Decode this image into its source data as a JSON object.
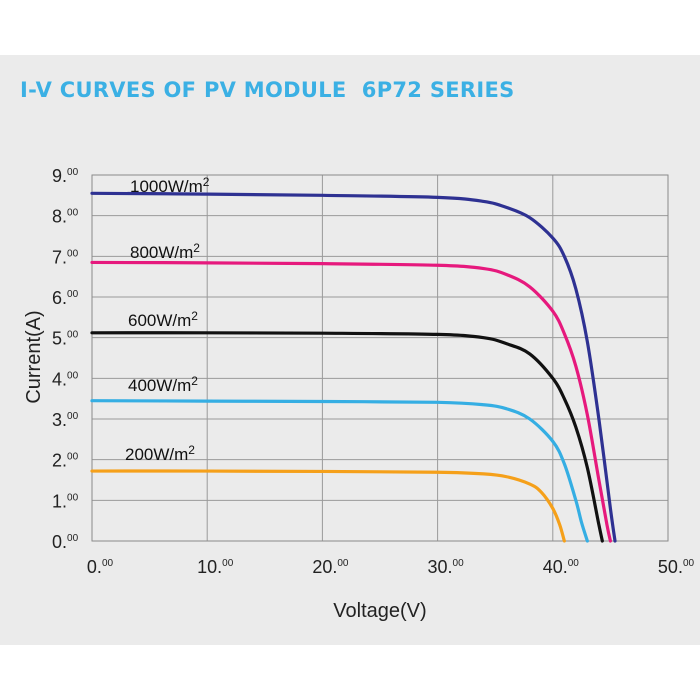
{
  "title": "I-V CURVES OF PV MODULE  6P72 SERIES",
  "colors": {
    "title": "#3bb0e4",
    "grid": "#9a9a9a",
    "background": "#ebebeb"
  },
  "chart_data": {
    "type": "line",
    "title": "I-V CURVES OF PV MODULE  6P72 SERIES",
    "xlabel": "Voltage(V)",
    "ylabel": "Current(A)",
    "xlim": [
      0,
      50
    ],
    "ylim": [
      0,
      9
    ],
    "grid": true,
    "legend": "inline-labels",
    "x_ticks": [
      {
        "value": 0,
        "label": "0.",
        "sup": "00"
      },
      {
        "value": 10,
        "label": "10.",
        "sup": "00"
      },
      {
        "value": 20,
        "label": "20.",
        "sup": "00"
      },
      {
        "value": 30,
        "label": "30.",
        "sup": "00"
      },
      {
        "value": 40,
        "label": "40.",
        "sup": "00"
      },
      {
        "value": 50,
        "label": "50.",
        "sup": "00"
      }
    ],
    "y_ticks": [
      {
        "value": 0,
        "label": "0.",
        "sup": "00"
      },
      {
        "value": 1,
        "label": "1.",
        "sup": "00"
      },
      {
        "value": 2,
        "label": "2.",
        "sup": "00"
      },
      {
        "value": 3,
        "label": "3.",
        "sup": "00"
      },
      {
        "value": 4,
        "label": "4.",
        "sup": "00"
      },
      {
        "value": 5,
        "label": "5.",
        "sup": "00"
      },
      {
        "value": 6,
        "label": "6.",
        "sup": "00"
      },
      {
        "value": 7,
        "label": "7.",
        "sup": "00"
      },
      {
        "value": 8,
        "label": "8.",
        "sup": "00"
      },
      {
        "value": 9,
        "label": "9.",
        "sup": "00"
      }
    ],
    "series": [
      {
        "name": "1000W/m2",
        "label": "1000W/m",
        "sup": "2",
        "color": "#2e3192",
        "x": [
          0,
          10,
          20,
          30,
          34,
          36,
          38,
          40,
          41,
          42,
          43,
          44,
          45,
          45.4
        ],
        "y": [
          8.55,
          8.53,
          8.5,
          8.45,
          8.35,
          8.2,
          7.95,
          7.45,
          7.0,
          6.2,
          4.9,
          3.0,
          0.8,
          0
        ]
      },
      {
        "name": "800W/m2",
        "label": "800W/m",
        "sup": "2",
        "color": "#e6197d",
        "x": [
          0,
          10,
          20,
          30,
          34,
          36,
          38,
          40,
          41,
          42,
          43,
          44,
          44.7,
          45.0
        ],
        "y": [
          6.85,
          6.84,
          6.82,
          6.78,
          6.7,
          6.55,
          6.25,
          5.65,
          5.1,
          4.3,
          3.1,
          1.5,
          0.4,
          0
        ]
      },
      {
        "name": "600W/m2",
        "label": "600W/m",
        "sup": "2",
        "color": "#111111",
        "x": [
          0,
          10,
          20,
          30,
          34,
          36,
          38,
          40,
          41,
          42,
          43,
          44,
          44.3
        ],
        "y": [
          5.12,
          5.12,
          5.11,
          5.08,
          5.0,
          4.85,
          4.6,
          4.0,
          3.5,
          2.8,
          1.8,
          0.4,
          0
        ]
      },
      {
        "name": "400W/m2",
        "label": "400W/m",
        "sup": "2",
        "color": "#35aee3",
        "x": [
          0,
          10,
          20,
          30,
          34,
          36,
          38,
          40,
          41,
          42,
          42.5,
          43.0
        ],
        "y": [
          3.45,
          3.44,
          3.43,
          3.41,
          3.35,
          3.25,
          3.0,
          2.45,
          1.9,
          1.0,
          0.45,
          0
        ]
      },
      {
        "name": "200W/m2",
        "label": "200W/m",
        "sup": "2",
        "color": "#f5a01a",
        "x": [
          0,
          10,
          20,
          30,
          34,
          36,
          38,
          39,
          40,
          40.6,
          41.0
        ],
        "y": [
          1.72,
          1.72,
          1.71,
          1.69,
          1.65,
          1.58,
          1.4,
          1.2,
          0.8,
          0.4,
          0
        ]
      }
    ]
  }
}
